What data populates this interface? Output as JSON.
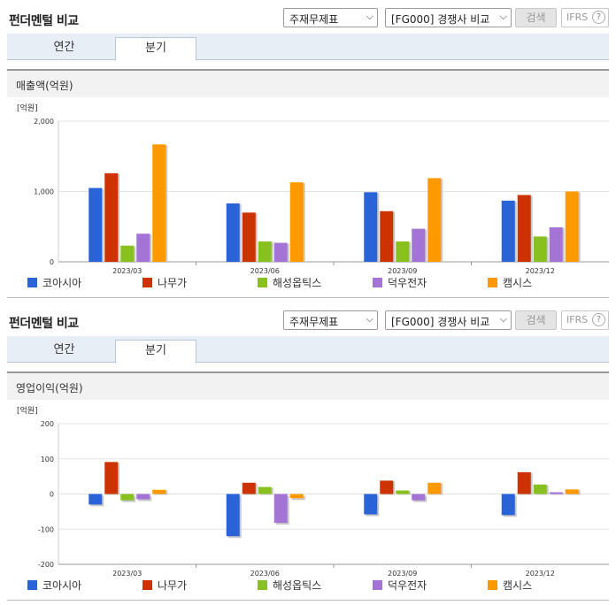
{
  "header": {
    "title": "펀더멘털 비교",
    "select1": "주재무제표",
    "select2": "[FG000] 경쟁사 비교",
    "search_label": "검색",
    "ifrs_label": "IFRS",
    "help_symbol": "?"
  },
  "tabs": [
    "연간",
    "분기"
  ],
  "colors": {
    "코아시아": "#2a62d8",
    "나무가": "#cc3300",
    "해성옵틱스": "#88c020",
    "덕우전자": "#a373d6",
    "캠시스": "#ff9900"
  },
  "chart_data": [
    {
      "type": "bar",
      "title": "매출액(억원)",
      "unit": "[억원]",
      "categories": [
        "2023/03",
        "2023/06",
        "2023/09",
        "2023/12"
      ],
      "ylim": [
        0,
        2000
      ],
      "yticks": [
        "2,000",
        "1,000",
        "0"
      ],
      "ytick_values": [
        2000,
        1000,
        0
      ],
      "series": [
        {
          "name": "코아시아",
          "values": [
            1050,
            830,
            990,
            870
          ]
        },
        {
          "name": "나무가",
          "values": [
            1260,
            700,
            720,
            950
          ]
        },
        {
          "name": "해성옵틱스",
          "values": [
            230,
            290,
            290,
            360
          ]
        },
        {
          "name": "덕우전자",
          "values": [
            400,
            270,
            470,
            490
          ]
        },
        {
          "name": "캠시스",
          "values": [
            1670,
            1130,
            1190,
            1000
          ]
        }
      ]
    },
    {
      "type": "bar",
      "title": "영업이익(억원)",
      "unit": "[억원]",
      "categories": [
        "2023/03",
        "2023/06",
        "2023/09",
        "2023/12"
      ],
      "ylim": [
        -200,
        200
      ],
      "yticks": [
        "200",
        "100",
        "0",
        "-100",
        "-200"
      ],
      "ytick_values": [
        200,
        100,
        0,
        -100,
        -200
      ],
      "series": [
        {
          "name": "코아시아",
          "values": [
            -30,
            -120,
            -58,
            -60
          ]
        },
        {
          "name": "나무가",
          "values": [
            91,
            32,
            38,
            62
          ]
        },
        {
          "name": "해성옵틱스",
          "values": [
            -18,
            20,
            10,
            27
          ]
        },
        {
          "name": "덕우전자",
          "values": [
            -15,
            -82,
            -18,
            5
          ]
        },
        {
          "name": "캠시스",
          "values": [
            12,
            -12,
            32,
            13
          ]
        }
      ]
    }
  ]
}
